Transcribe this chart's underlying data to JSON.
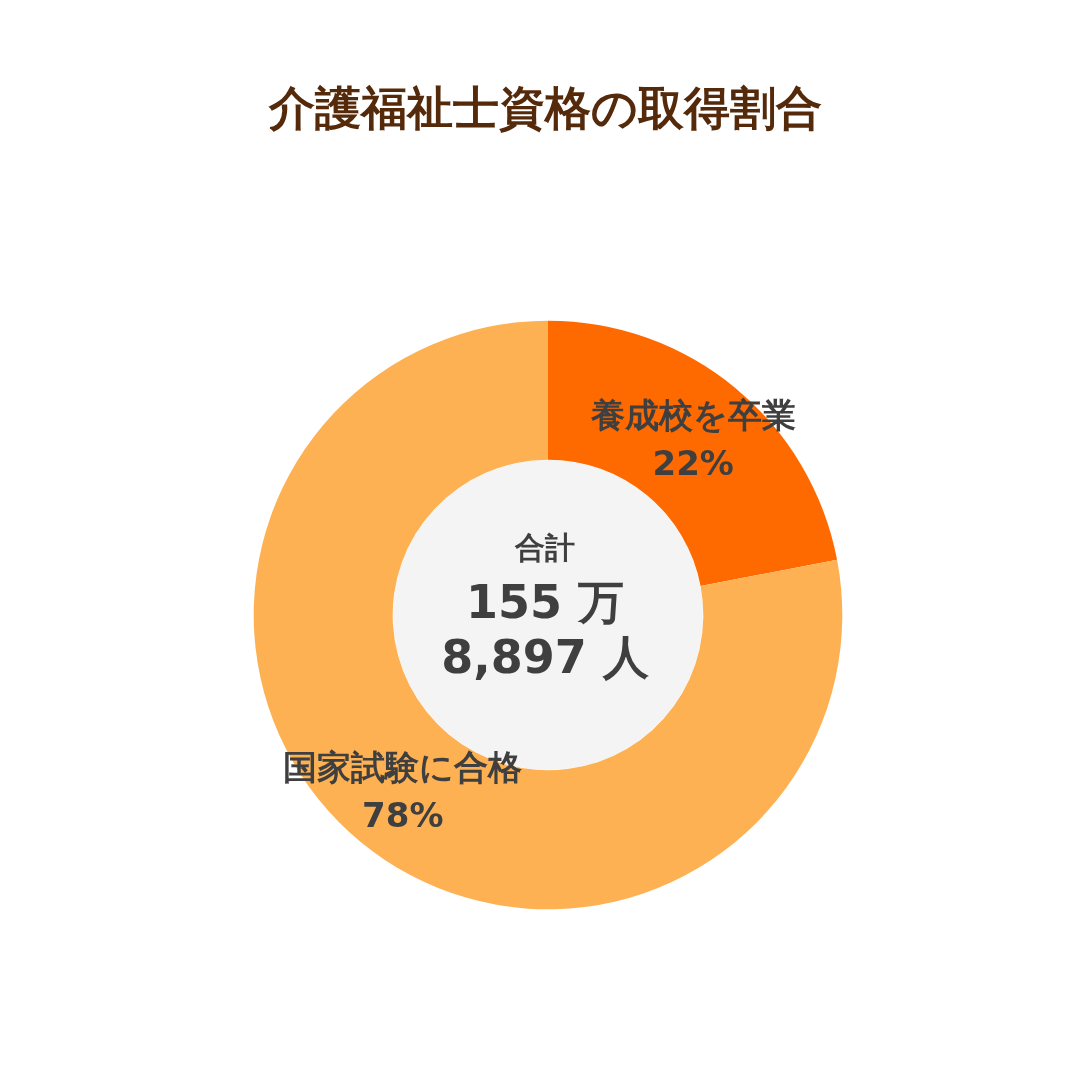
{
  "chart_data": {
    "type": "donut",
    "title": "介護福祉士資格の取得割合",
    "categories": [
      "養成校を卒業",
      "国家試験に合格"
    ],
    "values": [
      22,
      78
    ],
    "value_labels": [
      "22%",
      "78%"
    ],
    "colors": [
      "#ff6a00",
      "#fdb153"
    ],
    "annotations": [
      "合計",
      "155 万",
      "8,897 人"
    ]
  }
}
